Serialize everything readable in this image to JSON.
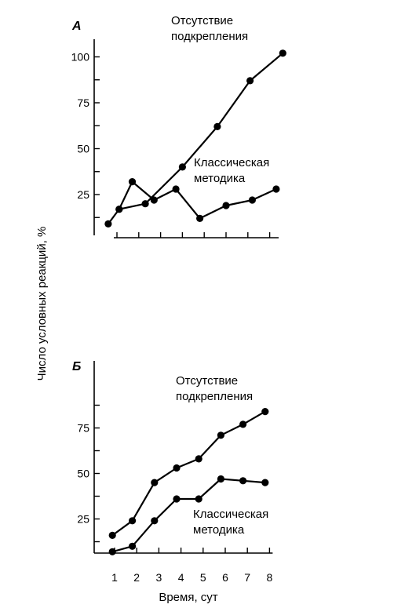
{
  "ylabel": "Число условных реакций, %",
  "xlabel": "Время, сут",
  "chart_data": [
    {
      "type": "line",
      "panel": "A",
      "x": [
        1,
        2,
        3,
        4,
        5,
        6,
        7,
        8
      ],
      "ylim": [
        0,
        105
      ],
      "yticks": [
        25,
        50,
        75,
        100
      ],
      "xticks_shown": false,
      "series": [
        {
          "name": "Отсутствие подкрепления",
          "points": [
            [
              0.6,
              9
            ],
            [
              1.1,
              17
            ],
            [
              2.3,
              20
            ],
            [
              4.0,
              40
            ],
            [
              5.6,
              62
            ],
            [
              7.1,
              87
            ],
            [
              8.6,
              102
            ]
          ]
        },
        {
          "name": "Классическая методика",
          "points": [
            [
              1.1,
              17
            ],
            [
              1.7,
              32
            ],
            [
              2.7,
              22
            ],
            [
              3.7,
              28
            ],
            [
              4.8,
              12
            ],
            [
              6.0,
              19
            ],
            [
              7.2,
              22
            ],
            [
              8.3,
              28
            ]
          ]
        }
      ],
      "series_label_lines": [
        [
          "Отсутствие",
          "подкрепления"
        ],
        [
          "Классическая",
          "методика"
        ]
      ]
    },
    {
      "type": "line",
      "panel": "Б",
      "x": [
        1,
        2,
        3,
        4,
        5,
        6,
        7,
        8
      ],
      "ylim": [
        0,
        95
      ],
      "yticks": [
        25,
        50,
        75
      ],
      "xtick_labels": [
        "1",
        "2",
        "3",
        "4",
        "5",
        "6",
        "7",
        "8"
      ],
      "series": [
        {
          "name": "Отсутствие подкрепления",
          "points": [
            [
              0.9,
              16
            ],
            [
              1.8,
              24
            ],
            [
              2.8,
              45
            ],
            [
              3.8,
              53
            ],
            [
              4.8,
              58
            ],
            [
              5.8,
              71
            ],
            [
              6.8,
              77
            ],
            [
              7.8,
              84
            ]
          ]
        },
        {
          "name": "Классическая методика",
          "points": [
            [
              0.9,
              7
            ],
            [
              1.8,
              10
            ],
            [
              2.8,
              24
            ],
            [
              3.8,
              36
            ],
            [
              4.8,
              36
            ],
            [
              5.8,
              47
            ],
            [
              6.8,
              46
            ],
            [
              7.8,
              45
            ]
          ]
        }
      ],
      "series_label_lines": [
        [
          "Отсутствие",
          "подкрепления"
        ],
        [
          "Классическая",
          "методика"
        ]
      ]
    }
  ]
}
